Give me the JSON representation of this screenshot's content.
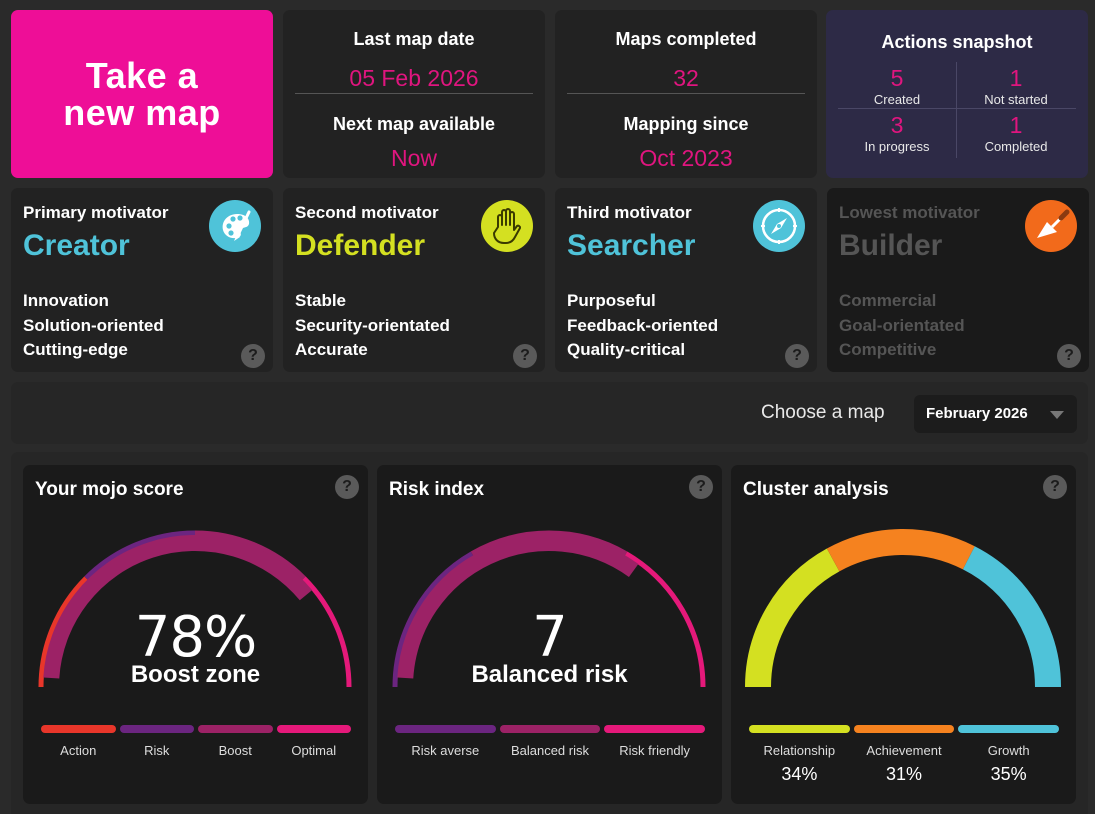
{
  "cta": {
    "label": "Take a\nnew map"
  },
  "dates": {
    "last_label": "Last map date",
    "last_value": "05 Feb 2026",
    "next_label": "Next map available",
    "next_value": "Now"
  },
  "maps": {
    "completed_label": "Maps completed",
    "completed_value": "32",
    "since_label": "Mapping since",
    "since_value": "Oct 2023"
  },
  "actions": {
    "title": "Actions snapshot",
    "cells": [
      {
        "count": "5",
        "label": "Created"
      },
      {
        "count": "1",
        "label": "Not started"
      },
      {
        "count": "3",
        "label": "In progress"
      },
      {
        "count": "1",
        "label": "Completed"
      }
    ]
  },
  "motivators": [
    {
      "label": "Primary motivator",
      "name": "Creator",
      "color": "#4fc3d9",
      "icon": "palette-icon",
      "traits": [
        "Innovation",
        "Solution-oriented",
        "Cutting-edge"
      ]
    },
    {
      "label": "Second motivator",
      "name": "Defender",
      "color": "#d4e021",
      "icon": "hand-icon",
      "traits": [
        "Stable",
        "Security-orientated",
        "Accurate"
      ]
    },
    {
      "label": "Third motivator",
      "name": "Searcher",
      "color": "#4fc3d9",
      "icon": "compass-icon",
      "traits": [
        "Purposeful",
        "Feedback-oriented",
        "Quality-critical"
      ]
    },
    {
      "label": "Lowest motivator",
      "name": "Builder",
      "color": "#555555",
      "icon": "trowel-icon",
      "traits": [
        "Commercial",
        "Goal-orientated",
        "Competitive"
      ]
    }
  ],
  "help_glyph": "?",
  "chooser": {
    "label": "Choose a map",
    "selected": "February 2026"
  },
  "mojo": {
    "title": "Your mojo score",
    "value": "78%",
    "zone": "Boost zone",
    "score_fraction": 0.78,
    "legend": [
      {
        "label": "Action",
        "color": "#e8362a"
      },
      {
        "label": "Risk",
        "color": "#6b2580"
      },
      {
        "label": "Boost",
        "color": "#9c2266"
      },
      {
        "label": "Optimal",
        "color": "#e5197a"
      }
    ]
  },
  "risk": {
    "title": "Risk index",
    "value": "7",
    "zone": "Balanced risk",
    "score_fraction": 0.7,
    "legend": [
      {
        "label": "Risk averse",
        "color": "#6b2580"
      },
      {
        "label": "Balanced risk",
        "color": "#9c2266"
      },
      {
        "label": "Risk friendly",
        "color": "#e5197a"
      }
    ]
  },
  "cluster": {
    "title": "Cluster analysis",
    "legend": [
      {
        "label": "Relationship",
        "color": "#d4e021",
        "pct": "34%",
        "share": 0.34
      },
      {
        "label": "Achievement",
        "color": "#f5821f",
        "pct": "31%",
        "share": 0.31
      },
      {
        "label": "Growth",
        "color": "#4fc3d9",
        "pct": "35%",
        "share": 0.35
      }
    ]
  }
}
